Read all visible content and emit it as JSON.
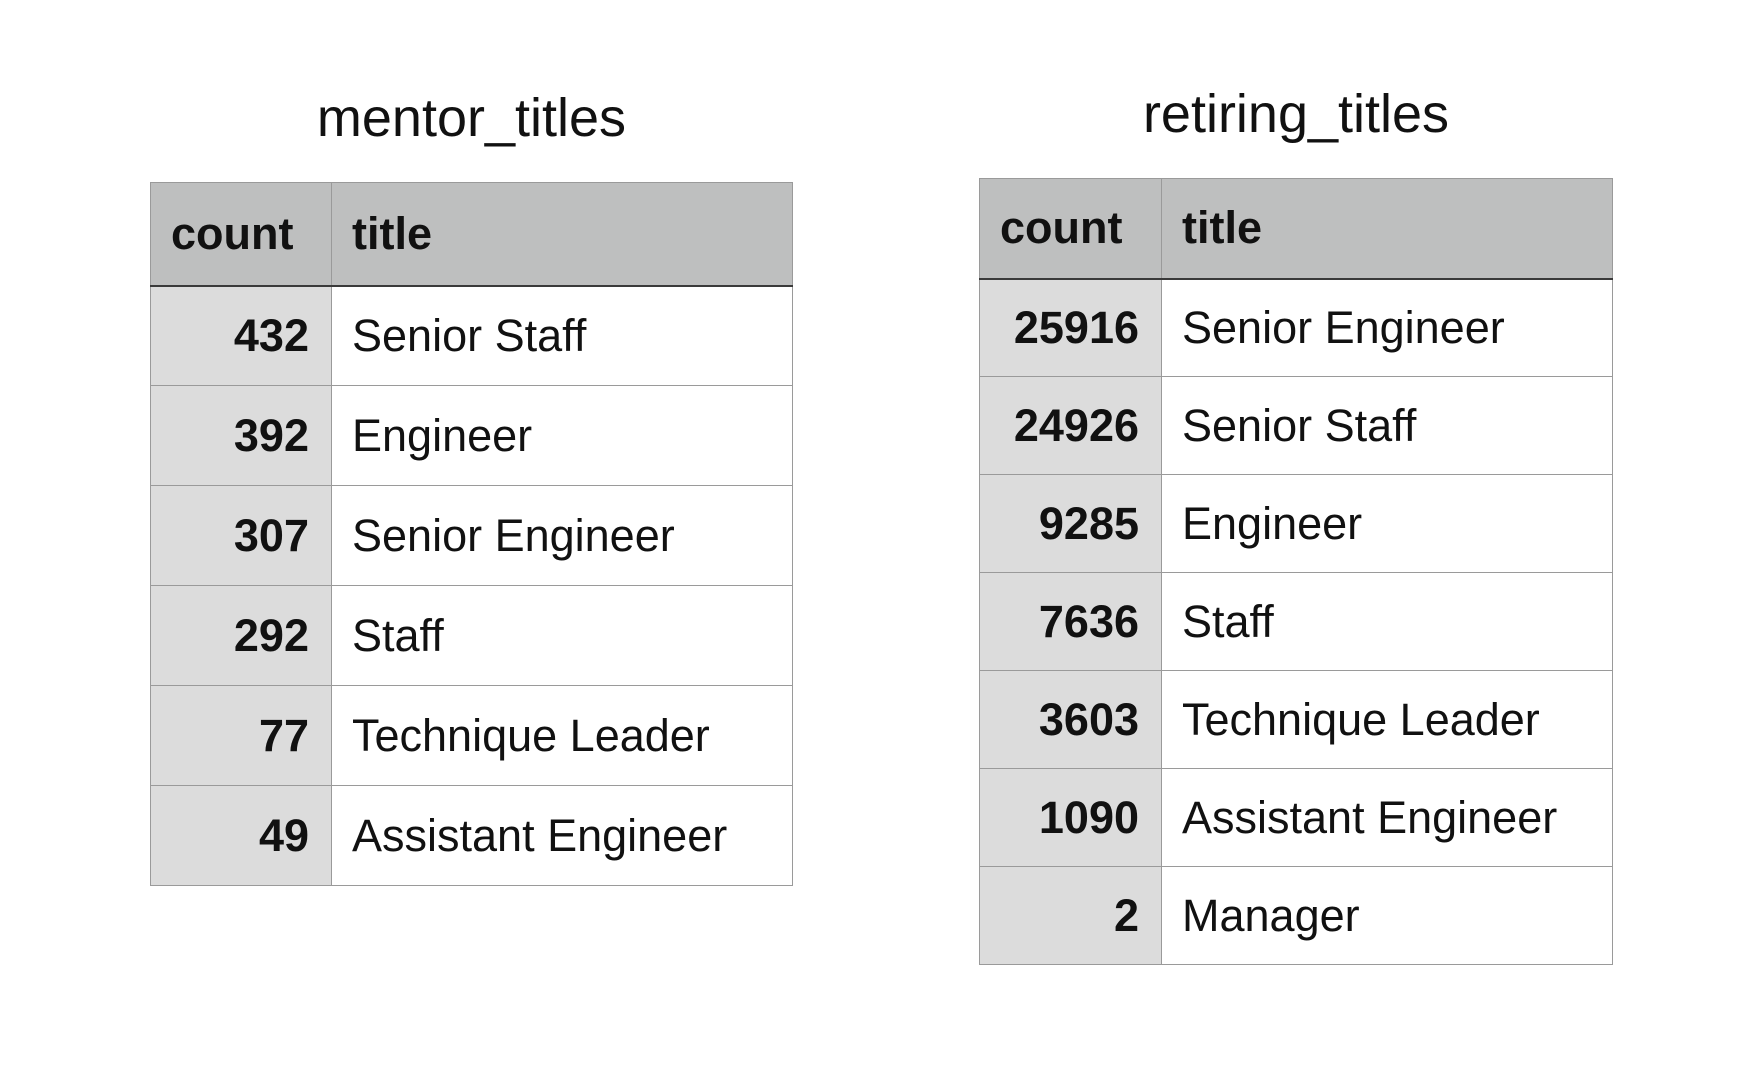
{
  "tables": [
    {
      "title": "mentor_titles",
      "columns": [
        "count",
        "title"
      ],
      "rows": [
        {
          "count": "432",
          "title": "Senior Staff"
        },
        {
          "count": "392",
          "title": "Engineer"
        },
        {
          "count": "307",
          "title": "Senior Engineer"
        },
        {
          "count": "292",
          "title": "Staff"
        },
        {
          "count": "77",
          "title": "Technique Leader"
        },
        {
          "count": "49",
          "title": "Assistant Engineer"
        }
      ]
    },
    {
      "title": "retiring_titles",
      "columns": [
        "count",
        "title"
      ],
      "rows": [
        {
          "count": "25916",
          "title": "Senior Engineer"
        },
        {
          "count": "24926",
          "title": "Senior Staff"
        },
        {
          "count": "9285",
          "title": "Engineer"
        },
        {
          "count": "7636",
          "title": "Staff"
        },
        {
          "count": "3603",
          "title": "Technique Leader"
        },
        {
          "count": "1090",
          "title": "Assistant Engineer"
        },
        {
          "count": "2",
          "title": "Manager"
        }
      ]
    }
  ]
}
